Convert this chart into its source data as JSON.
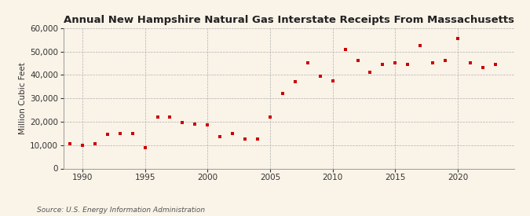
{
  "title": "Annual New Hampshire Natural Gas Interstate Receipts From Massachusetts",
  "ylabel": "Million Cubic Feet",
  "source": "Source: U.S. Energy Information Administration",
  "background_color": "#faf3e8",
  "marker_color": "#cc0000",
  "xlim": [
    1988.5,
    2024.5
  ],
  "ylim": [
    0,
    60000
  ],
  "yticks": [
    0,
    10000,
    20000,
    30000,
    40000,
    50000,
    60000
  ],
  "xticks": [
    1990,
    1995,
    2000,
    2005,
    2010,
    2015,
    2020
  ],
  "years": [
    1989,
    1990,
    1991,
    1992,
    1993,
    1994,
    1995,
    1996,
    1997,
    1998,
    1999,
    2000,
    2001,
    2002,
    2003,
    2004,
    2005,
    2006,
    2007,
    2008,
    2009,
    2010,
    2011,
    2012,
    2013,
    2014,
    2015,
    2016,
    2017,
    2018,
    2019,
    2020,
    2021,
    2022,
    2023
  ],
  "values": [
    10500,
    10000,
    10500,
    14500,
    15000,
    15000,
    9000,
    22000,
    22000,
    19500,
    19000,
    18500,
    13500,
    15000,
    12500,
    12500,
    22000,
    32000,
    37000,
    45000,
    39500,
    37500,
    51000,
    46000,
    41000,
    44500,
    45000,
    44500,
    52500,
    45000,
    46000,
    55500,
    45000,
    43000,
    44500
  ],
  "title_fontsize": 9.5,
  "ylabel_fontsize": 7.5,
  "tick_fontsize": 7.5,
  "source_fontsize": 6.5
}
